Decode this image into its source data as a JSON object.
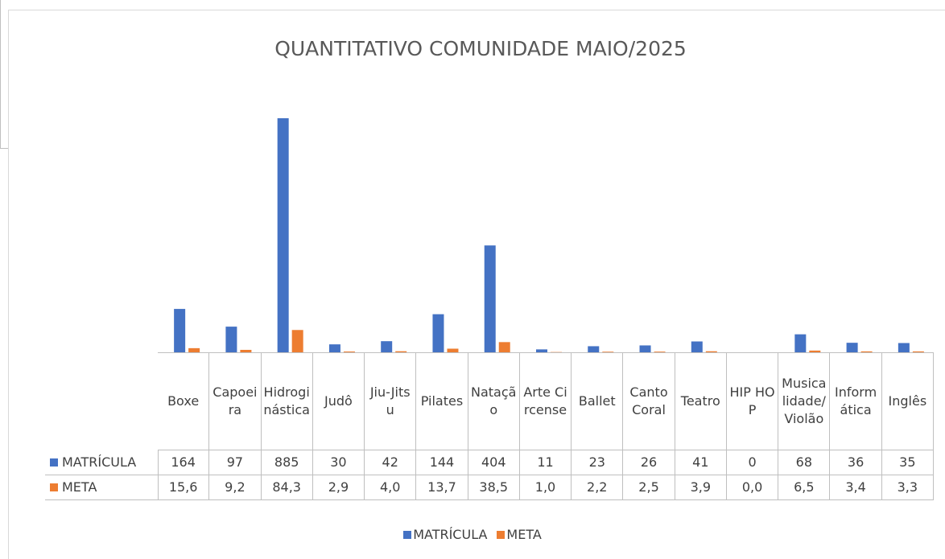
{
  "chart_data": {
    "type": "bar",
    "title": "QUANTITATIVO COMUNIDADE MAIO/2025",
    "categories": [
      "Boxe",
      "Capoeira",
      "Hidroginástica",
      "Judô",
      "Jiu-Jitsu",
      "Pilates",
      "Natação",
      "Arte Circense",
      "Ballet",
      "Canto Coral",
      "Teatro",
      "HIP HOP",
      "Musicalidade/Violão",
      "Informática",
      "Inglês"
    ],
    "series": [
      {
        "name": "MATRÍCULA",
        "color": "#4472c4",
        "values": [
          164,
          97,
          885,
          30,
          42,
          144,
          404,
          11,
          23,
          26,
          41,
          0,
          68,
          36,
          35
        ]
      },
      {
        "name": "META",
        "color": "#ed7d31",
        "values": [
          15.6,
          9.2,
          84.3,
          2.9,
          4.0,
          13.7,
          38.5,
          1.0,
          2.2,
          2.5,
          3.9,
          0.0,
          6.5,
          3.4,
          3.3
        ],
        "value_labels": [
          "15,6",
          "9,2",
          "84,3",
          "2,9",
          "4,0",
          "13,7",
          "38,5",
          "1,0",
          "2,2",
          "2,5",
          "3,9",
          "0,0",
          "6,5",
          "3,4",
          "3,3"
        ]
      }
    ],
    "legend": "bottom",
    "data_table": true
  }
}
